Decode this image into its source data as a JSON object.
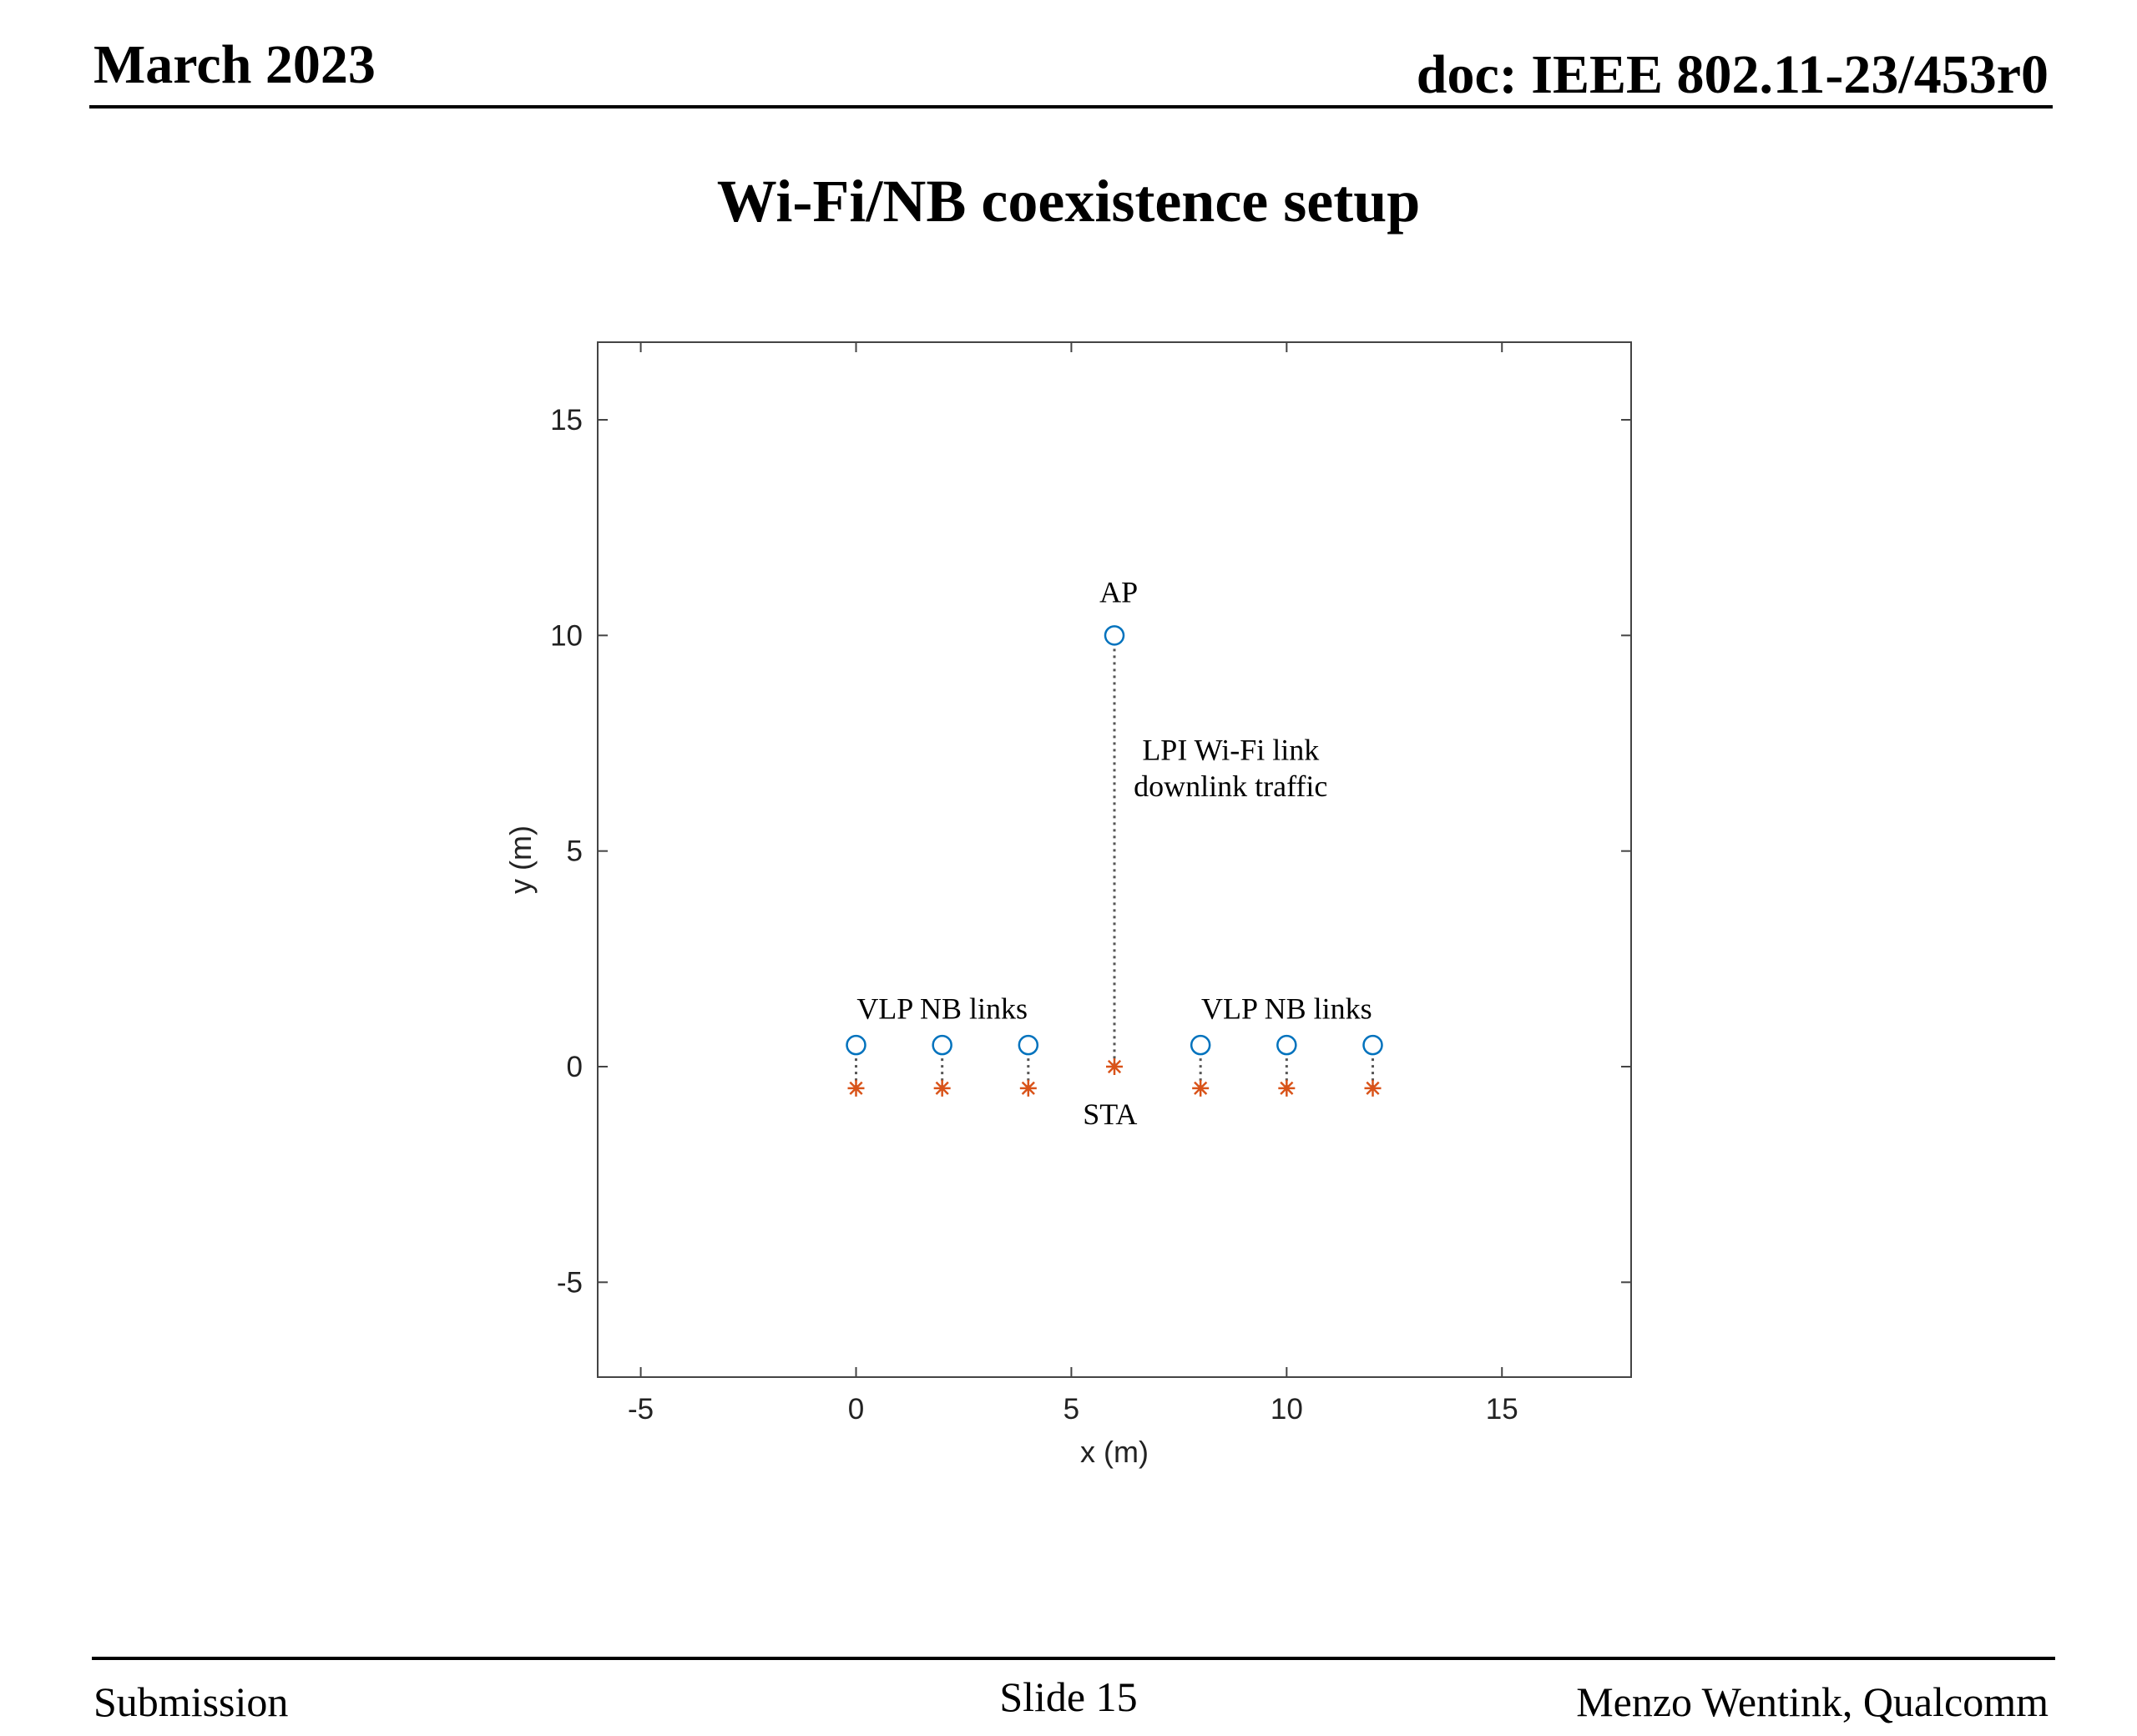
{
  "header": {
    "date": "March 2023",
    "doc": "doc: IEEE 802.11-23/453r0"
  },
  "slide": {
    "title": "Wi-Fi/NB coexistence setup"
  },
  "footer": {
    "left": "Submission",
    "center": "Slide 15",
    "right": "Menzo Wentink, Qualcomm"
  },
  "chart_data": {
    "type": "scatter",
    "title": "",
    "xlabel": "x (m)",
    "ylabel": "y (m)",
    "xlim": [
      -6,
      18
    ],
    "ylim": [
      -7.2,
      16.8
    ],
    "xticks": [
      -5,
      0,
      5,
      10,
      15
    ],
    "yticks": [
      -5,
      0,
      5,
      10,
      15
    ],
    "grid": false,
    "colors": {
      "circle": "#0072BD",
      "star": "#D95319",
      "link": "#555555"
    },
    "series": [
      {
        "marker": "circle",
        "points": [
          {
            "x": 6,
            "y": 10
          },
          {
            "x": 0,
            "y": 0.5
          },
          {
            "x": 2,
            "y": 0.5
          },
          {
            "x": 4,
            "y": 0.5
          },
          {
            "x": 8,
            "y": 0.5
          },
          {
            "x": 10,
            "y": 0.5
          },
          {
            "x": 12,
            "y": 0.5
          }
        ]
      },
      {
        "marker": "star",
        "points": [
          {
            "x": 6,
            "y": 0
          },
          {
            "x": 0,
            "y": -0.5
          },
          {
            "x": 2,
            "y": -0.5
          },
          {
            "x": 4,
            "y": -0.5
          },
          {
            "x": 8,
            "y": -0.5
          },
          {
            "x": 10,
            "y": -0.5
          },
          {
            "x": 12,
            "y": -0.5
          }
        ]
      }
    ],
    "links": [
      {
        "from": [
          6,
          10
        ],
        "to": [
          6,
          0
        ]
      },
      {
        "from": [
          0,
          0.5
        ],
        "to": [
          0,
          -0.5
        ]
      },
      {
        "from": [
          2,
          0.5
        ],
        "to": [
          2,
          -0.5
        ]
      },
      {
        "from": [
          4,
          0.5
        ],
        "to": [
          4,
          -0.5
        ]
      },
      {
        "from": [
          8,
          0.5
        ],
        "to": [
          8,
          -0.5
        ]
      },
      {
        "from": [
          10,
          0.5
        ],
        "to": [
          10,
          -0.5
        ]
      },
      {
        "from": [
          12,
          0.5
        ],
        "to": [
          12,
          -0.5
        ]
      }
    ],
    "annotations": [
      {
        "text": "AP",
        "x": 6.1,
        "y": 11.0
      },
      {
        "text": "LPI Wi-Fi link",
        "x": 8.7,
        "y": 7.35
      },
      {
        "text": "downlink traffic",
        "x": 8.7,
        "y": 6.5
      },
      {
        "text": "VLP NB links",
        "x": 2.0,
        "y": 1.35
      },
      {
        "text": "VLP NB links",
        "x": 10.0,
        "y": 1.35
      },
      {
        "text": "STA",
        "x": 5.9,
        "y": -1.1
      }
    ]
  }
}
